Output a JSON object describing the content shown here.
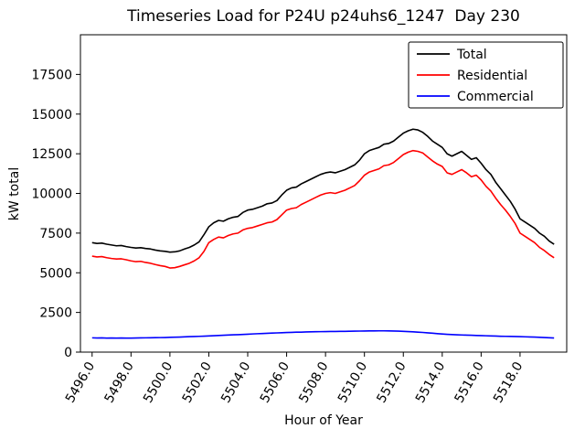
{
  "chart_data": {
    "type": "line",
    "title": "Timeseries Load for P24U p24uhs6_1247  Day 230",
    "xlabel": "Hour of Year",
    "ylabel": "kW total",
    "xlim": [
      5495.4,
      5520.4
    ],
    "ylim": [
      0,
      20000
    ],
    "xticks": [
      5496,
      5498,
      5500,
      5502,
      5504,
      5506,
      5508,
      5510,
      5512,
      5514,
      5516,
      5518
    ],
    "xtick_labels": [
      "5496.0",
      "5498.0",
      "5500.0",
      "5502.0",
      "5504.0",
      "5506.0",
      "5508.0",
      "5510.0",
      "5512.0",
      "5514.0",
      "5516.0",
      "5518.0"
    ],
    "yticks": [
      0,
      2500,
      5000,
      7500,
      10000,
      12500,
      15000,
      17500
    ],
    "ytick_labels": [
      "0",
      "2500",
      "5000",
      "7500",
      "10000",
      "12500",
      "15000",
      "17500"
    ],
    "legend_position": "upper right",
    "grid": false,
    "x_start": 5496.0,
    "x_step": 0.25,
    "series": [
      {
        "name": "Total",
        "color": "#000000",
        "values": [
          6900,
          6850,
          6870,
          6800,
          6750,
          6700,
          6720,
          6650,
          6600,
          6560,
          6580,
          6530,
          6500,
          6430,
          6380,
          6350,
          6300,
          6320,
          6380,
          6500,
          6600,
          6750,
          6950,
          7400,
          7900,
          8150,
          8300,
          8250,
          8400,
          8500,
          8550,
          8800,
          8950,
          9000,
          9100,
          9200,
          9350,
          9400,
          9550,
          9900,
          10200,
          10350,
          10400,
          10600,
          10750,
          10900,
          11050,
          11200,
          11300,
          11350,
          11300,
          11400,
          11500,
          11650,
          11800,
          12100,
          12500,
          12700,
          12800,
          12900,
          13100,
          13150,
          13300,
          13550,
          13800,
          13950,
          14050,
          14000,
          13850,
          13600,
          13300,
          13100,
          12900,
          12500,
          12350,
          12500,
          12650,
          12400,
          12150,
          12250,
          11900,
          11500,
          11200,
          10700,
          10300,
          9900,
          9500,
          9000,
          8400,
          8200,
          8000,
          7800,
          7500,
          7300,
          7000,
          6800
        ]
      },
      {
        "name": "Residential",
        "color": "#ff0000",
        "values": [
          6050,
          6000,
          6020,
          5950,
          5900,
          5870,
          5880,
          5820,
          5750,
          5700,
          5720,
          5650,
          5600,
          5520,
          5450,
          5400,
          5300,
          5320,
          5400,
          5500,
          5600,
          5750,
          5950,
          6350,
          6900,
          7100,
          7250,
          7200,
          7350,
          7450,
          7500,
          7700,
          7800,
          7850,
          7950,
          8050,
          8150,
          8200,
          8350,
          8650,
          8950,
          9050,
          9100,
          9300,
          9450,
          9600,
          9750,
          9900,
          10000,
          10050,
          10000,
          10100,
          10200,
          10350,
          10500,
          10800,
          11150,
          11350,
          11450,
          11550,
          11750,
          11800,
          11950,
          12200,
          12450,
          12600,
          12700,
          12650,
          12550,
          12300,
          12050,
          11850,
          11700,
          11300,
          11200,
          11350,
          11500,
          11300,
          11050,
          11150,
          10850,
          10450,
          10150,
          9700,
          9300,
          8950,
          8550,
          8100,
          7500,
          7300,
          7100,
          6900,
          6600,
          6400,
          6150,
          5950
        ]
      },
      {
        "name": "Commercial",
        "color": "#0000ff",
        "values": [
          900,
          890,
          895,
          885,
          890,
          885,
          890,
          880,
          885,
          890,
          895,
          900,
          905,
          910,
          915,
          920,
          930,
          940,
          950,
          960,
          975,
          985,
          995,
          1005,
          1020,
          1035,
          1050,
          1060,
          1075,
          1090,
          1100,
          1115,
          1130,
          1145,
          1160,
          1170,
          1185,
          1200,
          1210,
          1220,
          1235,
          1245,
          1255,
          1260,
          1270,
          1280,
          1285,
          1290,
          1295,
          1300,
          1300,
          1305,
          1310,
          1315,
          1320,
          1325,
          1330,
          1335,
          1335,
          1340,
          1340,
          1335,
          1330,
          1320,
          1310,
          1295,
          1280,
          1260,
          1240,
          1215,
          1190,
          1165,
          1140,
          1120,
          1105,
          1090,
          1080,
          1070,
          1060,
          1050,
          1040,
          1030,
          1020,
          1010,
          1000,
          995,
          990,
          985,
          975,
          965,
          955,
          945,
          930,
          920,
          905,
          890
        ]
      }
    ]
  }
}
